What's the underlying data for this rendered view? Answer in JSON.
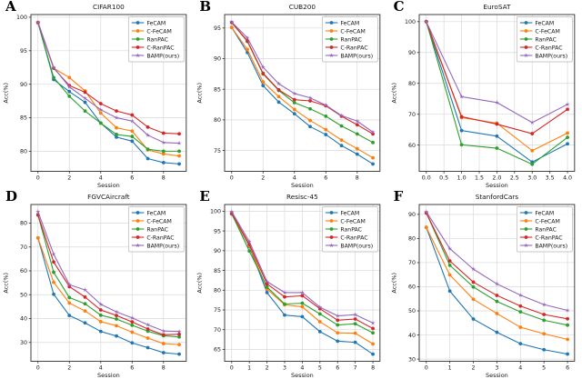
{
  "figure": {
    "background": "#ffffff",
    "grid_color": "#d9d9d9",
    "spine_color": "#2e2e2e",
    "text_color": "#141414",
    "legend_border": "#b5b5b5"
  },
  "legend": {
    "position": "upper-right",
    "entries": [
      {
        "label": "FeCAM",
        "color": "#1f77b4",
        "marker": "circle"
      },
      {
        "label": "C-FeCAM",
        "color": "#ff7f0e",
        "marker": "circle"
      },
      {
        "label": "RanPAC",
        "color": "#2ca02c",
        "marker": "circle"
      },
      {
        "label": "C-RanPAC",
        "color": "#d62728",
        "marker": "circle"
      },
      {
        "label": "BAMP(ours)",
        "color": "#9467bd",
        "marker": "star"
      }
    ]
  },
  "chart_data": [
    {
      "type": "line",
      "panel": "A",
      "title": "CIFAR100",
      "xlabel": "Session",
      "ylabel": "Acc(%)",
      "x": [
        0,
        1,
        2,
        3,
        4,
        5,
        6,
        7,
        8,
        9
      ],
      "xlim": [
        -0.45,
        9.45
      ],
      "ylim": [
        77.0,
        100.4
      ],
      "xtick_values": [
        0,
        2,
        4,
        6,
        8
      ],
      "xtick_labels": [
        "0",
        "2",
        "4",
        "6",
        "8"
      ],
      "ytick_values": [
        80,
        85,
        90,
        95,
        100
      ],
      "ytick_labels": [
        "80",
        "85",
        "90",
        "95",
        "100"
      ],
      "grid": true,
      "series": [
        {
          "name": "FeCAM",
          "values": [
            99.2,
            90.7,
            88.9,
            87.3,
            84.2,
            82.1,
            81.5,
            78.9,
            78.3,
            78.1
          ]
        },
        {
          "name": "C-FeCAM",
          "values": [
            99.2,
            92.4,
            91.0,
            89.0,
            85.7,
            83.5,
            83.0,
            80.2,
            79.6,
            79.3
          ]
        },
        {
          "name": "RanPAC",
          "values": [
            99.2,
            91.0,
            88.2,
            86.0,
            84.2,
            82.5,
            82.2,
            80.3,
            80.0,
            80.0
          ]
        },
        {
          "name": "C-RanPAC",
          "values": [
            99.2,
            92.4,
            89.8,
            88.8,
            87.1,
            86.0,
            85.4,
            83.6,
            82.7,
            82.6
          ]
        },
        {
          "name": "BAMP(ours)",
          "values": [
            99.3,
            92.5,
            89.6,
            87.9,
            86.2,
            85.0,
            84.5,
            82.4,
            81.3,
            81.2
          ]
        }
      ]
    },
    {
      "type": "line",
      "panel": "B",
      "title": "CUB200",
      "xlabel": "Session",
      "ylabel": "Acc(%)",
      "x": [
        0,
        1,
        2,
        3,
        4,
        5,
        6,
        7,
        8,
        9
      ],
      "xlim": [
        -0.45,
        9.45
      ],
      "ylim": [
        71.6,
        97.2
      ],
      "xtick_values": [
        0,
        2,
        4,
        6,
        8
      ],
      "xtick_labels": [
        "0",
        "2",
        "4",
        "6",
        "8"
      ],
      "ytick_values": [
        75,
        80,
        85,
        90,
        95
      ],
      "ytick_labels": [
        "75",
        "80",
        "85",
        "90",
        "95"
      ],
      "grid": true,
      "series": [
        {
          "name": "FeCAM",
          "values": [
            95.1,
            91.0,
            85.6,
            82.9,
            81.0,
            78.9,
            77.6,
            75.8,
            74.4,
            72.8
          ]
        },
        {
          "name": "C-FeCAM",
          "values": [
            95.1,
            91.5,
            86.2,
            83.8,
            81.7,
            79.9,
            78.4,
            76.7,
            75.3,
            73.8
          ]
        },
        {
          "name": "RanPAC",
          "values": [
            95.9,
            92.8,
            87.5,
            84.8,
            82.8,
            81.8,
            80.6,
            79.0,
            77.7,
            76.3
          ]
        },
        {
          "name": "C-RanPAC",
          "values": [
            95.9,
            92.9,
            87.6,
            84.9,
            83.3,
            83.1,
            82.3,
            80.6,
            79.2,
            77.7
          ]
        },
        {
          "name": "BAMP(ours)",
          "values": [
            96.0,
            93.4,
            88.6,
            85.9,
            84.3,
            83.6,
            82.4,
            80.7,
            79.8,
            78.0
          ]
        }
      ]
    },
    {
      "type": "line",
      "panel": "C",
      "title": "EuroSAT",
      "xlabel": "Session",
      "ylabel": "Acc(%)",
      "x": [
        0,
        1,
        2,
        3,
        4
      ],
      "xlim": [
        -0.2,
        4.2
      ],
      "ylim": [
        51.5,
        102.3
      ],
      "xtick_values": [
        0,
        0.5,
        1,
        1.5,
        2,
        2.5,
        3,
        3.5,
        4
      ],
      "xtick_labels": [
        "0.0",
        "0.5",
        "1.0",
        "1.5",
        "2.0",
        "2.5",
        "3.0",
        "3.5",
        "4.0"
      ],
      "ytick_values": [
        60,
        70,
        80,
        90,
        100
      ],
      "ytick_labels": [
        "60",
        "70",
        "80",
        "90",
        "100"
      ],
      "grid": true,
      "series": [
        {
          "name": "FeCAM",
          "values": [
            100.0,
            64.7,
            62.9,
            54.5,
            60.4
          ]
        },
        {
          "name": "C-FeCAM",
          "values": [
            100.0,
            68.9,
            67.1,
            58.2,
            63.9
          ]
        },
        {
          "name": "RanPAC",
          "values": [
            100.0,
            60.1,
            59.0,
            53.8,
            62.5
          ]
        },
        {
          "name": "C-RanPAC",
          "values": [
            100.0,
            69.2,
            66.8,
            63.7,
            71.6
          ]
        },
        {
          "name": "BAMP(ours)",
          "values": [
            100.0,
            75.7,
            73.8,
            67.3,
            73.2
          ]
        }
      ]
    },
    {
      "type": "line",
      "panel": "D",
      "title": "FGVCAircraft",
      "xlabel": "Session",
      "ylabel": "Acc(%)",
      "x": [
        0,
        1,
        2,
        3,
        4,
        5,
        6,
        7,
        8,
        9
      ],
      "xlim": [
        -0.45,
        9.45
      ],
      "ylim": [
        22.1,
        87.8
      ],
      "xtick_values": [
        0,
        2,
        4,
        6,
        8
      ],
      "xtick_labels": [
        "0",
        "2",
        "4",
        "6",
        "8"
      ],
      "ytick_values": [
        30,
        40,
        50,
        60,
        70,
        80
      ],
      "ytick_labels": [
        "30",
        "40",
        "50",
        "60",
        "70",
        "80"
      ],
      "grid": true,
      "series": [
        {
          "name": "FeCAM",
          "values": [
            73.8,
            50.2,
            41.3,
            38.2,
            34.6,
            32.7,
            29.8,
            27.8,
            25.7,
            25.1
          ]
        },
        {
          "name": "C-FeCAM",
          "values": [
            73.8,
            55.2,
            46.5,
            43.2,
            38.7,
            37.0,
            34.3,
            31.8,
            29.5,
            29.1
          ]
        },
        {
          "name": "RanPAC",
          "values": [
            83.4,
            59.4,
            48.8,
            46.2,
            41.4,
            39.8,
            37.2,
            34.7,
            32.8,
            32.3
          ]
        },
        {
          "name": "C-RanPAC",
          "values": [
            83.4,
            63.7,
            53.4,
            49.0,
            43.6,
            41.3,
            38.6,
            35.6,
            33.2,
            33.4
          ]
        },
        {
          "name": "BAMP(ours)",
          "values": [
            84.8,
            67.0,
            54.2,
            52.0,
            46.0,
            42.8,
            40.3,
            37.4,
            34.8,
            34.6
          ]
        }
      ]
    },
    {
      "type": "line",
      "panel": "E",
      "title": "Resisc-45",
      "xlabel": "Session",
      "ylabel": "Acc(%)",
      "x": [
        0,
        1,
        2,
        3,
        4,
        5,
        6,
        7,
        8
      ],
      "xlim": [
        -0.4,
        8.4
      ],
      "ylim": [
        62.0,
        101.7
      ],
      "xtick_values": [
        0,
        1,
        2,
        3,
        4,
        5,
        6,
        7,
        8
      ],
      "xtick_labels": [
        "0",
        "1",
        "2",
        "3",
        "4",
        "5",
        "6",
        "7",
        "8"
      ],
      "ytick_values": [
        65,
        70,
        75,
        80,
        85,
        90,
        95,
        100
      ],
      "ytick_labels": [
        "65",
        "70",
        "75",
        "80",
        "85",
        "90",
        "95",
        "100"
      ],
      "grid": true,
      "series": [
        {
          "name": "FeCAM",
          "values": [
            99.3,
            91.1,
            79.4,
            73.7,
            73.3,
            69.5,
            67.1,
            66.8,
            63.8
          ]
        },
        {
          "name": "C-FeCAM",
          "values": [
            99.3,
            91.3,
            80.3,
            76.3,
            75.8,
            72.0,
            69.2,
            69.1,
            66.4
          ]
        },
        {
          "name": "RanPAC",
          "values": [
            99.4,
            89.9,
            80.8,
            76.5,
            76.7,
            74.0,
            71.2,
            71.5,
            69.2
          ]
        },
        {
          "name": "C-RanPAC",
          "values": [
            99.5,
            91.6,
            81.6,
            78.3,
            78.6,
            75.3,
            72.4,
            72.7,
            70.3
          ]
        },
        {
          "name": "BAMP(ours)",
          "values": [
            99.9,
            92.3,
            82.2,
            79.4,
            79.4,
            75.7,
            73.5,
            73.8,
            71.7
          ]
        }
      ]
    },
    {
      "type": "line",
      "panel": "F",
      "title": "StanfordCars",
      "xlabel": "Session",
      "ylabel": "Acc(%)",
      "x": [
        0,
        1,
        2,
        3,
        4,
        5,
        6
      ],
      "xlim": [
        -0.3,
        6.3
      ],
      "ylim": [
        29.1,
        94.1
      ],
      "xtick_values": [
        0,
        1,
        2,
        3,
        4,
        5,
        6
      ],
      "xtick_labels": [
        "0",
        "1",
        "2",
        "3",
        "4",
        "5",
        "6"
      ],
      "ytick_values": [
        30,
        40,
        50,
        60,
        70,
        80,
        90
      ],
      "ytick_labels": [
        "30",
        "40",
        "50",
        "60",
        "70",
        "80",
        "90"
      ],
      "grid": true,
      "series": [
        {
          "name": "FeCAM",
          "values": [
            84.6,
            58.2,
            46.6,
            41.1,
            36.4,
            33.9,
            32.1
          ]
        },
        {
          "name": "C-FeCAM",
          "values": [
            84.6,
            64.9,
            54.8,
            48.9,
            43.2,
            40.5,
            38.2
          ]
        },
        {
          "name": "RanPAC",
          "values": [
            90.6,
            68.9,
            59.9,
            53.9,
            49.6,
            46.1,
            44.1
          ]
        },
        {
          "name": "C-RanPAC",
          "values": [
            90.6,
            70.7,
            61.9,
            56.4,
            52.0,
            48.5,
            46.7
          ]
        },
        {
          "name": "BAMP(ours)",
          "values": [
            91.1,
            75.8,
            67.3,
            61.2,
            56.5,
            52.6,
            50.2
          ]
        }
      ]
    }
  ]
}
